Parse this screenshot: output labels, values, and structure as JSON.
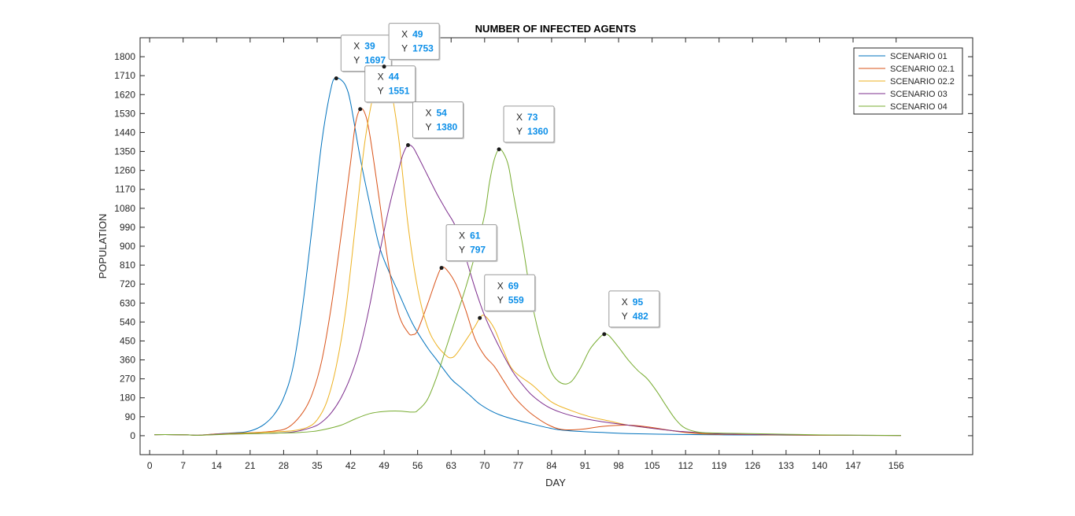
{
  "chart_data": {
    "type": "line",
    "title": "NUMBER OF INFECTED AGENTS",
    "xlabel": "DAY",
    "ylabel": "POPULATION",
    "xlim": [
      -2,
      172
    ],
    "ylim": [
      -90,
      1890
    ],
    "x_ticks": [
      0,
      7,
      14,
      21,
      28,
      35,
      42,
      49,
      56,
      63,
      70,
      77,
      84,
      91,
      98,
      105,
      112,
      119,
      126,
      133,
      140,
      147,
      156
    ],
    "x_tick_labels": [
      "0",
      "7",
      "14",
      "21",
      "28",
      "35",
      "42",
      "49",
      "56",
      "63",
      "70",
      "77",
      "84",
      "91",
      "98",
      "105",
      "112",
      "119",
      "126",
      "133",
      "140",
      "147",
      "156"
    ],
    "y_ticks": [
      0,
      90,
      180,
      270,
      360,
      450,
      540,
      630,
      720,
      810,
      900,
      990,
      1080,
      1170,
      1260,
      1350,
      1440,
      1530,
      1620,
      1710,
      1800
    ],
    "y_tick_labels": [
      "0",
      "90",
      "180",
      "270",
      "360",
      "450",
      "540",
      "630",
      "720",
      "810",
      "900",
      "990",
      "1080",
      "1170",
      "1260",
      "1350",
      "1440",
      "1530",
      "1620",
      "1710",
      "1800"
    ],
    "grid": false,
    "legend_position": "top-right",
    "series": [
      {
        "name": "SCENARIO 01",
        "color": "#0072BD",
        "points": [
          [
            1,
            5
          ],
          [
            5,
            5
          ],
          [
            8,
            4
          ],
          [
            10,
            2
          ],
          [
            12,
            5
          ],
          [
            15,
            10
          ],
          [
            18,
            14
          ],
          [
            20,
            18
          ],
          [
            22,
            30
          ],
          [
            24,
            55
          ],
          [
            26,
            100
          ],
          [
            28,
            180
          ],
          [
            30,
            330
          ],
          [
            32,
            620
          ],
          [
            34,
            1000
          ],
          [
            36,
            1400
          ],
          [
            38,
            1660
          ],
          [
            39,
            1697
          ],
          [
            40,
            1690
          ],
          [
            41,
            1660
          ],
          [
            42,
            1580
          ],
          [
            44,
            1320
          ],
          [
            46,
            1100
          ],
          [
            48,
            900
          ],
          [
            50,
            780
          ],
          [
            52,
            680
          ],
          [
            55,
            530
          ],
          [
            58,
            420
          ],
          [
            60,
            360
          ],
          [
            63,
            270
          ],
          [
            65,
            230
          ],
          [
            67,
            190
          ],
          [
            69,
            150
          ],
          [
            72,
            110
          ],
          [
            75,
            85
          ],
          [
            80,
            55
          ],
          [
            85,
            30
          ],
          [
            90,
            20
          ],
          [
            95,
            15
          ],
          [
            100,
            10
          ],
          [
            110,
            6
          ],
          [
            120,
            4
          ],
          [
            130,
            3
          ],
          [
            140,
            2
          ],
          [
            157,
            1
          ]
        ]
      },
      {
        "name": "SCENARIO 02.1",
        "color": "#D95319",
        "points": [
          [
            1,
            5
          ],
          [
            5,
            5
          ],
          [
            8,
            4
          ],
          [
            10,
            2
          ],
          [
            14,
            8
          ],
          [
            18,
            12
          ],
          [
            22,
            15
          ],
          [
            26,
            22
          ],
          [
            29,
            40
          ],
          [
            32,
            110
          ],
          [
            34,
            200
          ],
          [
            36,
            360
          ],
          [
            38,
            620
          ],
          [
            40,
            950
          ],
          [
            42,
            1300
          ],
          [
            43,
            1480
          ],
          [
            44,
            1551
          ],
          [
            45,
            1530
          ],
          [
            46,
            1430
          ],
          [
            48,
            1120
          ],
          [
            50,
            800
          ],
          [
            52,
            580
          ],
          [
            54,
            490
          ],
          [
            55,
            480
          ],
          [
            56,
            500
          ],
          [
            58,
            620
          ],
          [
            60,
            750
          ],
          [
            61,
            797
          ],
          [
            62,
            790
          ],
          [
            64,
            720
          ],
          [
            66,
            600
          ],
          [
            68,
            460
          ],
          [
            70,
            380
          ],
          [
            72,
            330
          ],
          [
            74,
            260
          ],
          [
            76,
            190
          ],
          [
            78,
            140
          ],
          [
            80,
            100
          ],
          [
            83,
            55
          ],
          [
            86,
            30
          ],
          [
            90,
            30
          ],
          [
            95,
            45
          ],
          [
            100,
            50
          ],
          [
            104,
            42
          ],
          [
            108,
            28
          ],
          [
            112,
            15
          ],
          [
            116,
            8
          ],
          [
            120,
            6
          ],
          [
            130,
            4
          ],
          [
            140,
            2
          ],
          [
            157,
            1
          ]
        ]
      },
      {
        "name": "SCENARIO 02.2",
        "color": "#EDB120",
        "points": [
          [
            1,
            5
          ],
          [
            5,
            5
          ],
          [
            8,
            4
          ],
          [
            10,
            2
          ],
          [
            14,
            6
          ],
          [
            18,
            10
          ],
          [
            22,
            14
          ],
          [
            26,
            18
          ],
          [
            30,
            24
          ],
          [
            33,
            40
          ],
          [
            35,
            75
          ],
          [
            37,
            160
          ],
          [
            39,
            330
          ],
          [
            41,
            600
          ],
          [
            43,
            1000
          ],
          [
            45,
            1400
          ],
          [
            47,
            1650
          ],
          [
            48,
            1730
          ],
          [
            49,
            1753
          ],
          [
            50,
            1700
          ],
          [
            52,
            1420
          ],
          [
            54,
            1000
          ],
          [
            56,
            700
          ],
          [
            58,
            520
          ],
          [
            60,
            430
          ],
          [
            62,
            380
          ],
          [
            63,
            370
          ],
          [
            64,
            385
          ],
          [
            66,
            450
          ],
          [
            68,
            520
          ],
          [
            69,
            559
          ],
          [
            70,
            570
          ],
          [
            72,
            510
          ],
          [
            74,
            400
          ],
          [
            76,
            310
          ],
          [
            80,
            240
          ],
          [
            84,
            160
          ],
          [
            88,
            120
          ],
          [
            92,
            90
          ],
          [
            96,
            70
          ],
          [
            100,
            50
          ],
          [
            105,
            35
          ],
          [
            110,
            22
          ],
          [
            115,
            12
          ],
          [
            120,
            8
          ],
          [
            130,
            4
          ],
          [
            140,
            2
          ],
          [
            157,
            1
          ]
        ]
      },
      {
        "name": "SCENARIO 03",
        "color": "#7E2F8E",
        "points": [
          [
            1,
            5
          ],
          [
            5,
            5
          ],
          [
            8,
            4
          ],
          [
            10,
            2
          ],
          [
            14,
            6
          ],
          [
            18,
            8
          ],
          [
            22,
            10
          ],
          [
            26,
            12
          ],
          [
            30,
            18
          ],
          [
            34,
            40
          ],
          [
            36,
            65
          ],
          [
            38,
            110
          ],
          [
            40,
            180
          ],
          [
            42,
            280
          ],
          [
            44,
            420
          ],
          [
            46,
            620
          ],
          [
            48,
            860
          ],
          [
            50,
            1080
          ],
          [
            52,
            1260
          ],
          [
            53,
            1340
          ],
          [
            54,
            1380
          ],
          [
            55,
            1370
          ],
          [
            56,
            1330
          ],
          [
            58,
            1240
          ],
          [
            60,
            1150
          ],
          [
            62,
            1070
          ],
          [
            64,
            990
          ],
          [
            66,
            850
          ],
          [
            68,
            700
          ],
          [
            70,
            570
          ],
          [
            72,
            470
          ],
          [
            74,
            380
          ],
          [
            76,
            300
          ],
          [
            78,
            240
          ],
          [
            80,
            190
          ],
          [
            83,
            140
          ],
          [
            86,
            110
          ],
          [
            90,
            85
          ],
          [
            95,
            65
          ],
          [
            100,
            50
          ],
          [
            105,
            35
          ],
          [
            110,
            22
          ],
          [
            115,
            14
          ],
          [
            120,
            8
          ],
          [
            130,
            5
          ],
          [
            140,
            3
          ],
          [
            157,
            1
          ]
        ]
      },
      {
        "name": "SCENARIO 04",
        "color": "#77AC30",
        "points": [
          [
            1,
            5
          ],
          [
            5,
            5
          ],
          [
            8,
            4
          ],
          [
            10,
            2
          ],
          [
            14,
            5
          ],
          [
            18,
            8
          ],
          [
            22,
            10
          ],
          [
            26,
            12
          ],
          [
            30,
            14
          ],
          [
            34,
            20
          ],
          [
            37,
            32
          ],
          [
            40,
            50
          ],
          [
            43,
            80
          ],
          [
            46,
            105
          ],
          [
            49,
            115
          ],
          [
            52,
            117
          ],
          [
            55,
            112
          ],
          [
            56,
            120
          ],
          [
            58,
            170
          ],
          [
            60,
            280
          ],
          [
            62,
            420
          ],
          [
            64,
            560
          ],
          [
            66,
            700
          ],
          [
            68,
            860
          ],
          [
            70,
            1050
          ],
          [
            71,
            1200
          ],
          [
            72,
            1310
          ],
          [
            73,
            1360
          ],
          [
            74,
            1340
          ],
          [
            75,
            1280
          ],
          [
            76,
            1150
          ],
          [
            78,
            900
          ],
          [
            80,
            620
          ],
          [
            82,
            430
          ],
          [
            84,
            300
          ],
          [
            86,
            250
          ],
          [
            88,
            255
          ],
          [
            90,
            320
          ],
          [
            92,
            410
          ],
          [
            94,
            465
          ],
          [
            95,
            482
          ],
          [
            96,
            475
          ],
          [
            98,
            420
          ],
          [
            100,
            360
          ],
          [
            102,
            310
          ],
          [
            104,
            270
          ],
          [
            106,
            210
          ],
          [
            108,
            140
          ],
          [
            110,
            75
          ],
          [
            112,
            35
          ],
          [
            115,
            16
          ],
          [
            120,
            12
          ],
          [
            130,
            8
          ],
          [
            140,
            4
          ],
          [
            157,
            1
          ]
        ]
      }
    ],
    "datatips": [
      {
        "x_label": "X",
        "y_label": "Y",
        "x": 39,
        "y": 1697,
        "series": "SCENARIO 01"
      },
      {
        "x_label": "X",
        "y_label": "Y",
        "x": 44,
        "y": 1551,
        "series": "SCENARIO 02.1"
      },
      {
        "x_label": "X",
        "y_label": "Y",
        "x": 49,
        "y": 1753,
        "series": "SCENARIO 02.2"
      },
      {
        "x_label": "X",
        "y_label": "Y",
        "x": 54,
        "y": 1380,
        "series": "SCENARIO 03"
      },
      {
        "x_label": "X",
        "y_label": "Y",
        "x": 61,
        "y": 797,
        "series": "SCENARIO 02.1"
      },
      {
        "x_label": "X",
        "y_label": "Y",
        "x": 69,
        "y": 559,
        "series": "SCENARIO 02.2"
      },
      {
        "x_label": "X",
        "y_label": "Y",
        "x": 73,
        "y": 1360,
        "series": "SCENARIO 04"
      },
      {
        "x_label": "X",
        "y_label": "Y",
        "x": 95,
        "y": 482,
        "series": "SCENARIO 04"
      }
    ]
  }
}
